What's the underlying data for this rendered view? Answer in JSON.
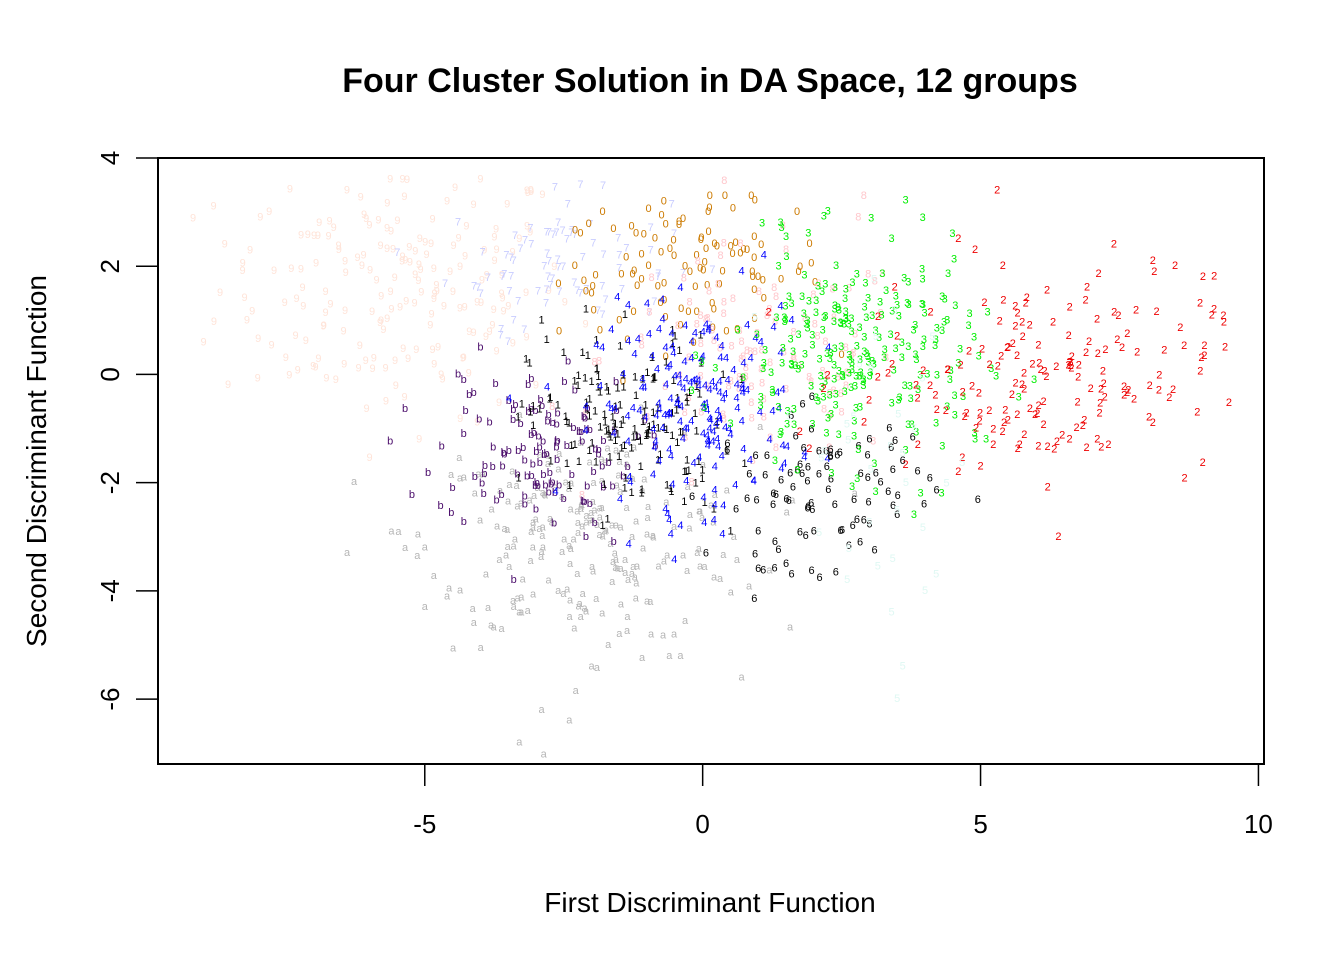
{
  "chart_data": {
    "type": "scatter",
    "title": "Four Cluster Solution in DA Space, 12 groups",
    "xlabel": "First Discriminant Function",
    "ylabel": "Second Discriminant Function",
    "xlim": [
      -9.8,
      10.1
    ],
    "ylim": [
      -7.2,
      4.0
    ],
    "xticks": [
      -5,
      0,
      5,
      10
    ],
    "yticks": [
      -6,
      -4,
      -2,
      0,
      2,
      4
    ],
    "grid": false,
    "legend": "none",
    "series": [
      {
        "symbol": "9",
        "color": "#ffe4d9",
        "cx": -5.5,
        "cy": 1.6,
        "sx": 1.6,
        "sy": 1.2,
        "n": 180,
        "points": [
          [
            -7.8,
            3.0
          ],
          [
            -6.9,
            2.8
          ],
          [
            -5.4,
            3.6
          ],
          [
            -4.6,
            3.2
          ],
          [
            -4.0,
            3.6
          ],
          [
            -3.3,
            2.5
          ],
          [
            -8.6,
            2.4
          ],
          [
            -7.2,
            1.6
          ],
          [
            -6.1,
            2.2
          ],
          [
            -5.6,
            1.2
          ],
          [
            -4.9,
            0.9
          ],
          [
            -4.3,
            0.3
          ],
          [
            -3.6,
            1.4
          ],
          [
            -3.0,
            -0.2
          ],
          [
            -5.7,
            -0.5
          ],
          [
            -6.6,
            -0.1
          ],
          [
            -7.5,
            0.3
          ],
          [
            -8.2,
            1.0
          ],
          [
            -5.1,
            -1.2
          ]
        ]
      },
      {
        "symbol": "7",
        "color": "#c8ccff",
        "cx": -2.6,
        "cy": 2.1,
        "sx": 1.0,
        "sy": 0.6,
        "n": 70,
        "points": [
          [
            -2.2,
            3.5
          ],
          [
            -2.6,
            2.8
          ],
          [
            -3.1,
            2.7
          ],
          [
            -3.4,
            2.1
          ],
          [
            -3.6,
            1.8
          ],
          [
            -2.2,
            1.5
          ],
          [
            -1.8,
            1.1
          ],
          [
            -3.4,
            1.0
          ],
          [
            -3.5,
            0.6
          ],
          [
            -1.5,
            2.2
          ],
          [
            -0.8,
            1.8
          ]
        ]
      },
      {
        "symbol": "0",
        "color": "#cc7a00",
        "cx": -0.2,
        "cy": 1.9,
        "sx": 1.2,
        "sy": 0.6,
        "n": 90,
        "points": [
          [
            -1.8,
            3.0
          ],
          [
            -0.7,
            3.2
          ],
          [
            0.1,
            3.0
          ],
          [
            0.4,
            3.3
          ],
          [
            1.7,
            3.0
          ],
          [
            -1.2,
            2.6
          ],
          [
            -2.2,
            2.6
          ],
          [
            -2.3,
            2.0
          ],
          [
            -2.0,
            1.5
          ],
          [
            -1.5,
            1.0
          ],
          [
            0.8,
            2.3
          ],
          [
            0.9,
            1.8
          ],
          [
            1.1,
            1.4
          ],
          [
            0.2,
            1.2
          ],
          [
            -0.4,
            0.9
          ]
        ]
      },
      {
        "symbol": "8",
        "color": "#ffc7cc",
        "cx": 1.0,
        "cy": 0.3,
        "sx": 1.4,
        "sy": 1.0,
        "n": 110,
        "points": [
          [
            2.9,
            3.3
          ],
          [
            2.8,
            2.9
          ],
          [
            1.5,
            2.3
          ],
          [
            1.2,
            1.2
          ],
          [
            0.7,
            0.6
          ],
          [
            -0.1,
            -0.2
          ],
          [
            1.1,
            -0.8
          ],
          [
            0.9,
            -1.6
          ],
          [
            -0.2,
            -2.0
          ],
          [
            -1.0,
            -0.8
          ],
          [
            2.5,
            -0.7
          ],
          [
            3.3,
            0.3
          ]
        ]
      },
      {
        "symbol": "a",
        "color": "#b5b5b5",
        "cx": -2.0,
        "cy": -3.0,
        "sx": 1.5,
        "sy": 1.0,
        "n": 220,
        "points": [
          [
            -6.4,
            -3.3
          ],
          [
            -5.6,
            -2.9
          ],
          [
            -5.0,
            -3.2
          ],
          [
            -5.0,
            -4.3
          ],
          [
            -4.6,
            -4.1
          ],
          [
            -3.9,
            -3.7
          ],
          [
            -3.4,
            -4.3
          ],
          [
            -3.3,
            -4.4
          ],
          [
            -2.6,
            -4.0
          ],
          [
            -2.0,
            -5.4
          ],
          [
            -1.7,
            -5.0
          ],
          [
            -1.5,
            -4.8
          ],
          [
            -1.0,
            -4.2
          ],
          [
            -0.6,
            -5.2
          ],
          [
            -0.4,
            -5.2
          ],
          [
            0.7,
            -5.6
          ],
          [
            -2.4,
            -6.4
          ],
          [
            -2.9,
            -6.2
          ],
          [
            -3.3,
            -6.8
          ],
          [
            -4.1,
            -2.2
          ],
          [
            -3.8,
            -2.5
          ]
        ]
      },
      {
        "symbol": "b",
        "color": "#4b0d6b",
        "cx": -3.0,
        "cy": -1.4,
        "sx": 0.9,
        "sy": 0.7,
        "n": 110,
        "points": [
          [
            -4.3,
            -0.1
          ],
          [
            -4.4,
            0.0
          ],
          [
            -4.0,
            0.5
          ],
          [
            -4.3,
            -1.1
          ],
          [
            -4.1,
            -1.9
          ],
          [
            -4.5,
            -2.1
          ],
          [
            -3.6,
            -1.7
          ],
          [
            -3.2,
            -2.4
          ],
          [
            -3.0,
            -2.5
          ],
          [
            -2.5,
            -2.3
          ],
          [
            -2.1,
            -3.0
          ],
          [
            -1.6,
            -3.1
          ],
          [
            -3.4,
            -3.8
          ],
          [
            -2.3,
            -0.3
          ],
          [
            -2.7,
            -0.9
          ]
        ]
      },
      {
        "symbol": "1",
        "color": "#000000",
        "cx": -1.3,
        "cy": -0.9,
        "sx": 0.9,
        "sy": 0.8,
        "n": 140,
        "points": [
          [
            -2.9,
            1.0
          ],
          [
            -2.1,
            1.2
          ],
          [
            -1.4,
            1.1
          ],
          [
            -0.5,
            0.7
          ],
          [
            -2.5,
            0.4
          ],
          [
            -1.9,
            0.1
          ],
          [
            -1.2,
            -0.4
          ],
          [
            -0.8,
            -1.0
          ],
          [
            -0.3,
            -1.8
          ],
          [
            0.2,
            -2.5
          ],
          [
            0.5,
            -2.9
          ],
          [
            -1.8,
            -2.8
          ],
          [
            -1.1,
            -2.2
          ],
          [
            -2.3,
            -1.3
          ],
          [
            -3.1,
            -0.7
          ]
        ]
      },
      {
        "symbol": "4",
        "color": "#0000ff",
        "cx": -0.1,
        "cy": -0.6,
        "sx": 0.9,
        "sy": 0.9,
        "n": 170,
        "points": [
          [
            1.1,
            2.2
          ],
          [
            0.7,
            1.9
          ],
          [
            -0.4,
            1.6
          ],
          [
            -1.0,
            1.3
          ],
          [
            1.6,
            1.0
          ],
          [
            1.4,
            0.4
          ],
          [
            0.8,
            -0.3
          ],
          [
            0.3,
            -0.8
          ],
          [
            -0.6,
            -1.4
          ],
          [
            -1.3,
            -2.0
          ],
          [
            -0.6,
            -2.7
          ],
          [
            -0.4,
            -2.8
          ],
          [
            0.2,
            -2.7
          ],
          [
            -1.6,
            -1.1
          ],
          [
            -2.1,
            -0.6
          ]
        ]
      },
      {
        "symbol": "6",
        "color": "#000000",
        "cx": 2.2,
        "cy": -2.1,
        "sx": 1.0,
        "sy": 0.7,
        "n": 80,
        "points": [
          [
            1.0,
            -2.9
          ],
          [
            1.3,
            -3.1
          ],
          [
            1.0,
            -3.6
          ],
          [
            1.5,
            -3.5
          ],
          [
            1.6,
            -3.7
          ],
          [
            2.0,
            -2.9
          ],
          [
            2.7,
            -2.8
          ],
          [
            2.9,
            -2.7
          ],
          [
            3.5,
            -2.6
          ],
          [
            3.0,
            -1.2
          ],
          [
            2.3,
            -1.4
          ],
          [
            0.8,
            -2.3
          ],
          [
            0.6,
            -2.5
          ],
          [
            3.2,
            -2.0
          ],
          [
            3.6,
            -1.6
          ]
        ]
      },
      {
        "symbol": "3",
        "color": "#00ee00",
        "cx": 2.7,
        "cy": 0.3,
        "sx": 1.1,
        "sy": 1.0,
        "n": 230,
        "points": [
          [
            1.4,
            2.8
          ],
          [
            1.9,
            2.6
          ],
          [
            2.4,
            2.0
          ],
          [
            3.4,
            2.5
          ],
          [
            3.7,
            1.7
          ],
          [
            4.4,
            1.0
          ],
          [
            4.6,
            0.2
          ],
          [
            4.4,
            -0.6
          ],
          [
            4.9,
            -1.2
          ],
          [
            5.1,
            -1.2
          ],
          [
            4.3,
            -2.2
          ],
          [
            3.8,
            -2.6
          ],
          [
            2.8,
            -1.4
          ],
          [
            1.3,
            -1.6
          ],
          [
            1.1,
            0.2
          ]
        ]
      },
      {
        "symbol": "2",
        "color": "#ee0000",
        "cx": 6.0,
        "cy": 0.0,
        "sx": 1.6,
        "sy": 0.9,
        "n": 160,
        "points": [
          [
            5.3,
            3.4
          ],
          [
            4.6,
            2.5
          ],
          [
            4.9,
            2.3
          ],
          [
            5.4,
            2.0
          ],
          [
            7.4,
            2.4
          ],
          [
            8.1,
            2.1
          ],
          [
            8.5,
            2.0
          ],
          [
            9.0,
            1.8
          ],
          [
            9.2,
            1.2
          ],
          [
            9.4,
            0.5
          ],
          [
            8.9,
            -0.7
          ],
          [
            8.1,
            -0.9
          ],
          [
            7.1,
            -1.2
          ],
          [
            6.6,
            -1.2
          ],
          [
            6.4,
            -3.0
          ],
          [
            5.0,
            -1.7
          ],
          [
            4.6,
            -1.8
          ],
          [
            3.5,
            0.7
          ],
          [
            7.3,
            -1.3
          ]
        ]
      },
      {
        "symbol": "5",
        "color": "#dff8f3",
        "cx": 3.0,
        "cy": -1.5,
        "sx": 0.8,
        "sy": 1.6,
        "n": 30,
        "points": [
          [
            3.5,
            -6.0
          ],
          [
            3.4,
            -4.4
          ],
          [
            3.6,
            -5.4
          ],
          [
            4.0,
            -4.0
          ],
          [
            2.6,
            -3.8
          ]
        ]
      }
    ]
  }
}
